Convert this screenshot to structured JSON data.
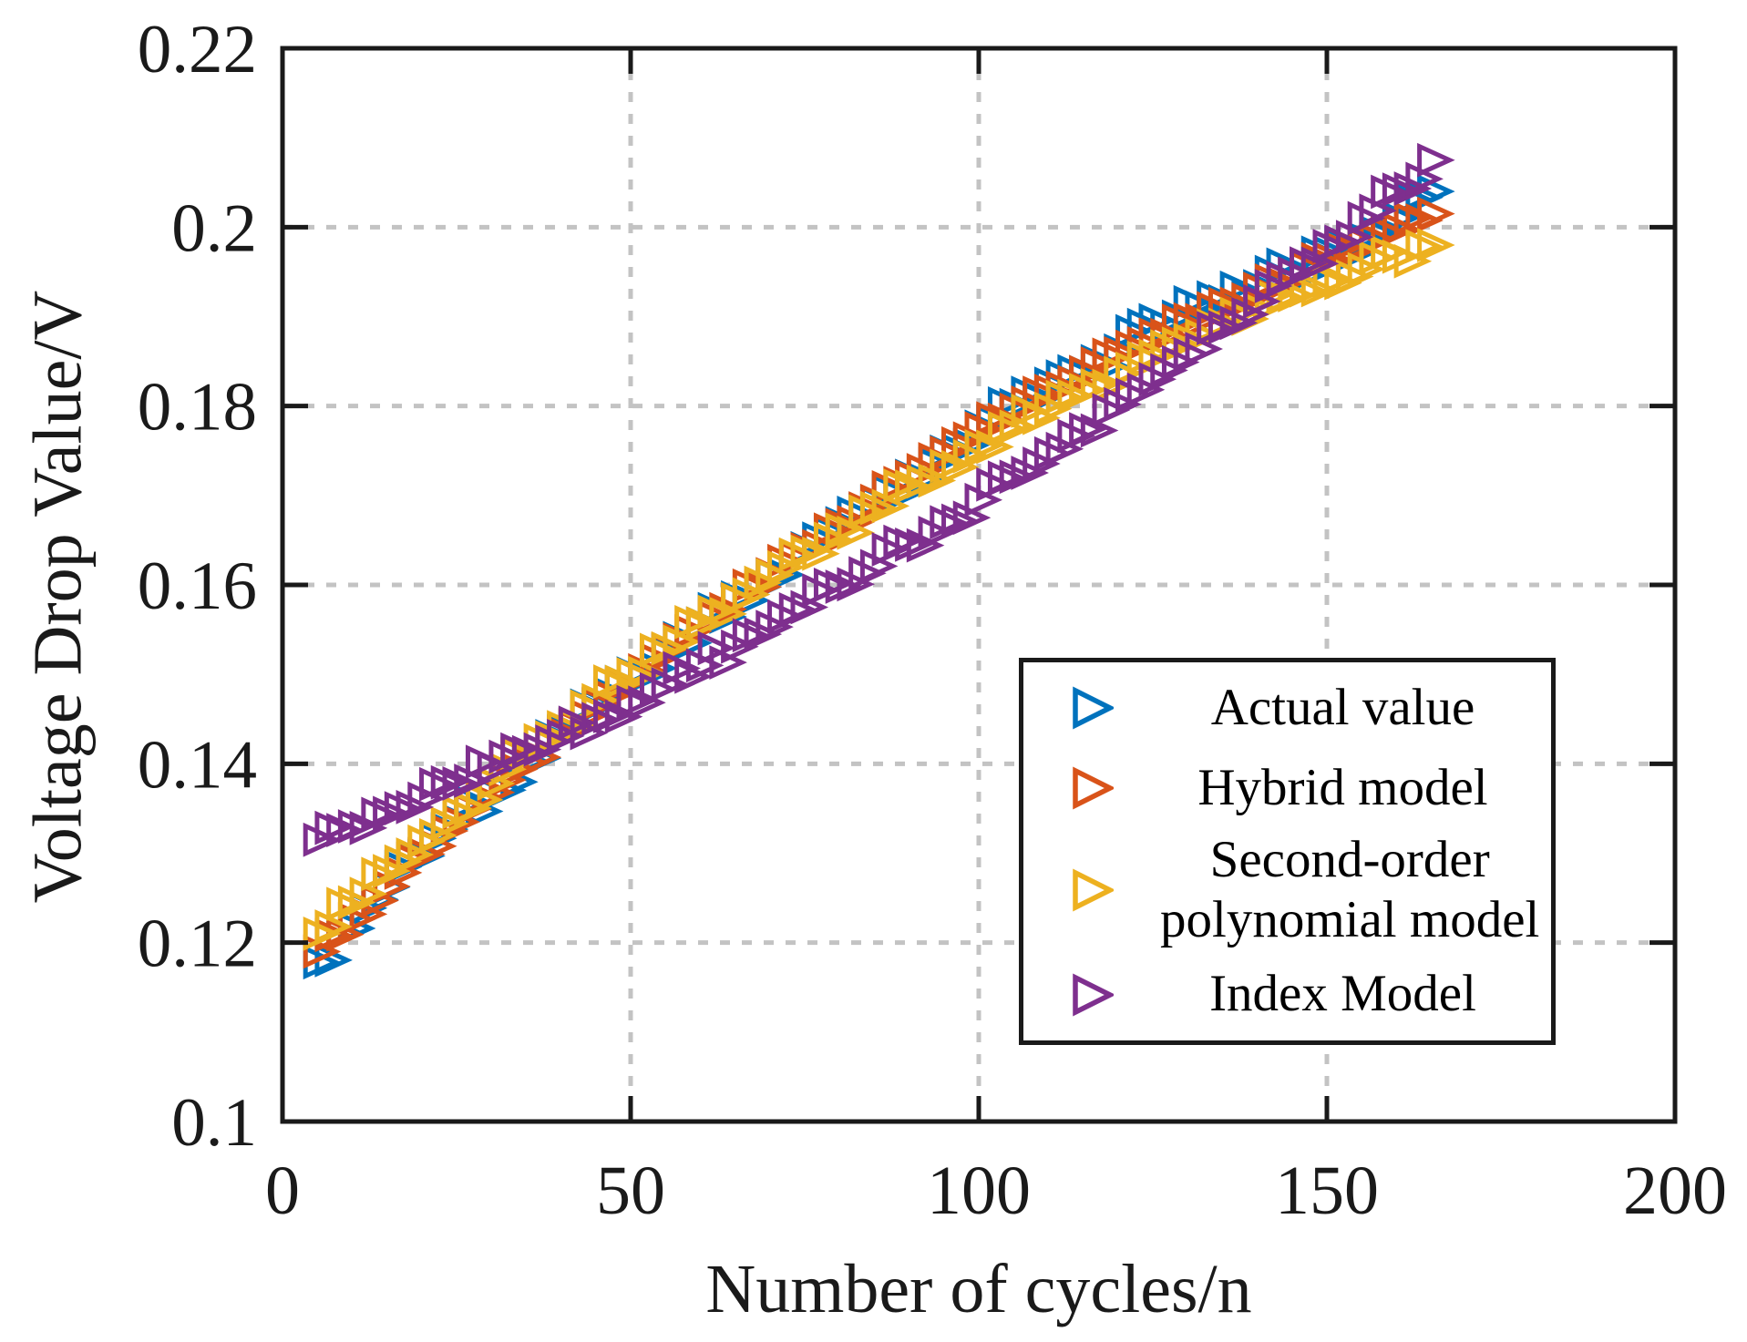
{
  "chart_data": {
    "type": "scatter",
    "marker": "triangle-right-open",
    "title": "",
    "xlabel": "Number of cycles/n",
    "ylabel": "Voltage Drop Value/V",
    "xlim": [
      0,
      200
    ],
    "ylim": [
      0.1,
      0.22
    ],
    "xticks": [
      0,
      50,
      100,
      150,
      200
    ],
    "xtick_labels": [
      "0",
      "50",
      "100",
      "150",
      "200"
    ],
    "yticks": [
      0.1,
      0.12,
      0.14,
      0.16,
      0.18,
      0.2,
      0.22
    ],
    "ytick_labels": [
      "0.1",
      "0.12",
      "0.14",
      "0.16",
      "0.18",
      "0.2",
      "0.22"
    ],
    "grid": {
      "on": true,
      "style": "dashed",
      "color": "#c3c3c3",
      "x_values": [
        50,
        100,
        150
      ],
      "y_values": [
        0.12,
        0.14,
        0.16,
        0.18,
        0.2
      ]
    },
    "axis_color": "#1a1a1a",
    "legend": {
      "position": "inside-lower-right",
      "border_color": "#1a1a1a",
      "entries": [
        {
          "series": 0,
          "lines": [
            "Actual value"
          ]
        },
        {
          "series": 1,
          "lines": [
            "Hybrid model"
          ]
        },
        {
          "series": 2,
          "lines": [
            "Second-order",
            "polynomial model"
          ]
        },
        {
          "series": 3,
          "lines": [
            "Index Model"
          ]
        }
      ]
    },
    "series": [
      {
        "name": "Actual value",
        "color": "#0072BD",
        "jitter": 0.0013,
        "points": [
          [
            5,
            0.1178
          ],
          [
            10,
            0.1216
          ],
          [
            15,
            0.1262
          ],
          [
            20,
            0.1297
          ],
          [
            25,
            0.1336
          ],
          [
            30,
            0.1367
          ],
          [
            35,
            0.1403
          ],
          [
            40,
            0.1436
          ],
          [
            45,
            0.1466
          ],
          [
            50,
            0.1501
          ],
          [
            55,
            0.1527
          ],
          [
            60,
            0.1557
          ],
          [
            65,
            0.1586
          ],
          [
            70,
            0.1611
          ],
          [
            75,
            0.1641
          ],
          [
            80,
            0.1669
          ],
          [
            85,
            0.1693
          ],
          [
            90,
            0.1722
          ],
          [
            95,
            0.1749
          ],
          [
            100,
            0.1777
          ],
          [
            105,
            0.1801
          ],
          [
            110,
            0.1825
          ],
          [
            115,
            0.1838
          ],
          [
            120,
            0.1862
          ],
          [
            125,
            0.1896
          ],
          [
            130,
            0.1916
          ],
          [
            135,
            0.1917
          ],
          [
            140,
            0.1934
          ],
          [
            145,
            0.1951
          ],
          [
            150,
            0.1972
          ],
          [
            155,
            0.1987
          ],
          [
            160,
            0.201
          ],
          [
            165,
            0.204
          ]
        ]
      },
      {
        "name": "Hybrid model",
        "color": "#D95319",
        "jitter": 0.0007,
        "points": [
          [
            5,
            0.119
          ],
          [
            10,
            0.1226
          ],
          [
            15,
            0.1263
          ],
          [
            20,
            0.1299
          ],
          [
            25,
            0.1335
          ],
          [
            30,
            0.1368
          ],
          [
            35,
            0.1401
          ],
          [
            40,
            0.1434
          ],
          [
            45,
            0.1467
          ],
          [
            50,
            0.15
          ],
          [
            55,
            0.1528
          ],
          [
            60,
            0.1556
          ],
          [
            65,
            0.1584
          ],
          [
            70,
            0.1612
          ],
          [
            75,
            0.164
          ],
          [
            80,
            0.1667
          ],
          [
            85,
            0.1694
          ],
          [
            90,
            0.1721
          ],
          [
            95,
            0.1748
          ],
          [
            100,
            0.1775
          ],
          [
            105,
            0.1796
          ],
          [
            110,
            0.1817
          ],
          [
            115,
            0.1838
          ],
          [
            120,
            0.1859
          ],
          [
            125,
            0.188
          ],
          [
            130,
            0.1897
          ],
          [
            135,
            0.1914
          ],
          [
            140,
            0.1931
          ],
          [
            145,
            0.1948
          ],
          [
            150,
            0.1965
          ],
          [
            155,
            0.1982
          ],
          [
            160,
            0.1998
          ],
          [
            165,
            0.2015
          ]
        ]
      },
      {
        "name": "Second-order polynomial model",
        "color": "#EDB120",
        "jitter": 0.0012,
        "points": [
          [
            5,
            0.121
          ],
          [
            10,
            0.1245
          ],
          [
            15,
            0.128
          ],
          [
            20,
            0.1313
          ],
          [
            25,
            0.1346
          ],
          [
            30,
            0.1378
          ],
          [
            35,
            0.141
          ],
          [
            40,
            0.1441
          ],
          [
            45,
            0.1471
          ],
          [
            50,
            0.15
          ],
          [
            55,
            0.1529
          ],
          [
            60,
            0.1557
          ],
          [
            65,
            0.1584
          ],
          [
            70,
            0.1611
          ],
          [
            75,
            0.1637
          ],
          [
            80,
            0.1662
          ],
          [
            85,
            0.1686
          ],
          [
            90,
            0.171
          ],
          [
            95,
            0.1733
          ],
          [
            100,
            0.1755
          ],
          [
            105,
            0.1777
          ],
          [
            110,
            0.1797
          ],
          [
            115,
            0.1818
          ],
          [
            120,
            0.1837
          ],
          [
            125,
            0.1856
          ],
          [
            130,
            0.1874
          ],
          [
            135,
            0.1891
          ],
          [
            140,
            0.1908
          ],
          [
            145,
            0.1924
          ],
          [
            150,
            0.1939
          ],
          [
            155,
            0.1953
          ],
          [
            160,
            0.1967
          ],
          [
            165,
            0.198
          ]
        ]
      },
      {
        "name": "Index Model",
        "color": "#7E2F8E",
        "jitter": 0.0013,
        "points": [
          [
            5,
            0.1315
          ],
          [
            10,
            0.133
          ],
          [
            15,
            0.1345
          ],
          [
            20,
            0.1361
          ],
          [
            25,
            0.1378
          ],
          [
            30,
            0.1395
          ],
          [
            35,
            0.1413
          ],
          [
            40,
            0.1431
          ],
          [
            45,
            0.145
          ],
          [
            50,
            0.1469
          ],
          [
            55,
            0.1489
          ],
          [
            60,
            0.151
          ],
          [
            65,
            0.1531
          ],
          [
            70,
            0.1553
          ],
          [
            75,
            0.1575
          ],
          [
            80,
            0.1598
          ],
          [
            85,
            0.1621
          ],
          [
            90,
            0.1645
          ],
          [
            95,
            0.167
          ],
          [
            100,
            0.1695
          ],
          [
            105,
            0.1721
          ],
          [
            110,
            0.1747
          ],
          [
            115,
            0.1774
          ],
          [
            120,
            0.1802
          ],
          [
            125,
            0.183
          ],
          [
            130,
            0.1858
          ],
          [
            135,
            0.1888
          ],
          [
            140,
            0.1917
          ],
          [
            145,
            0.1948
          ],
          [
            150,
            0.1979
          ],
          [
            155,
            0.201
          ],
          [
            160,
            0.2042
          ],
          [
            165,
            0.2075
          ]
        ]
      }
    ]
  }
}
